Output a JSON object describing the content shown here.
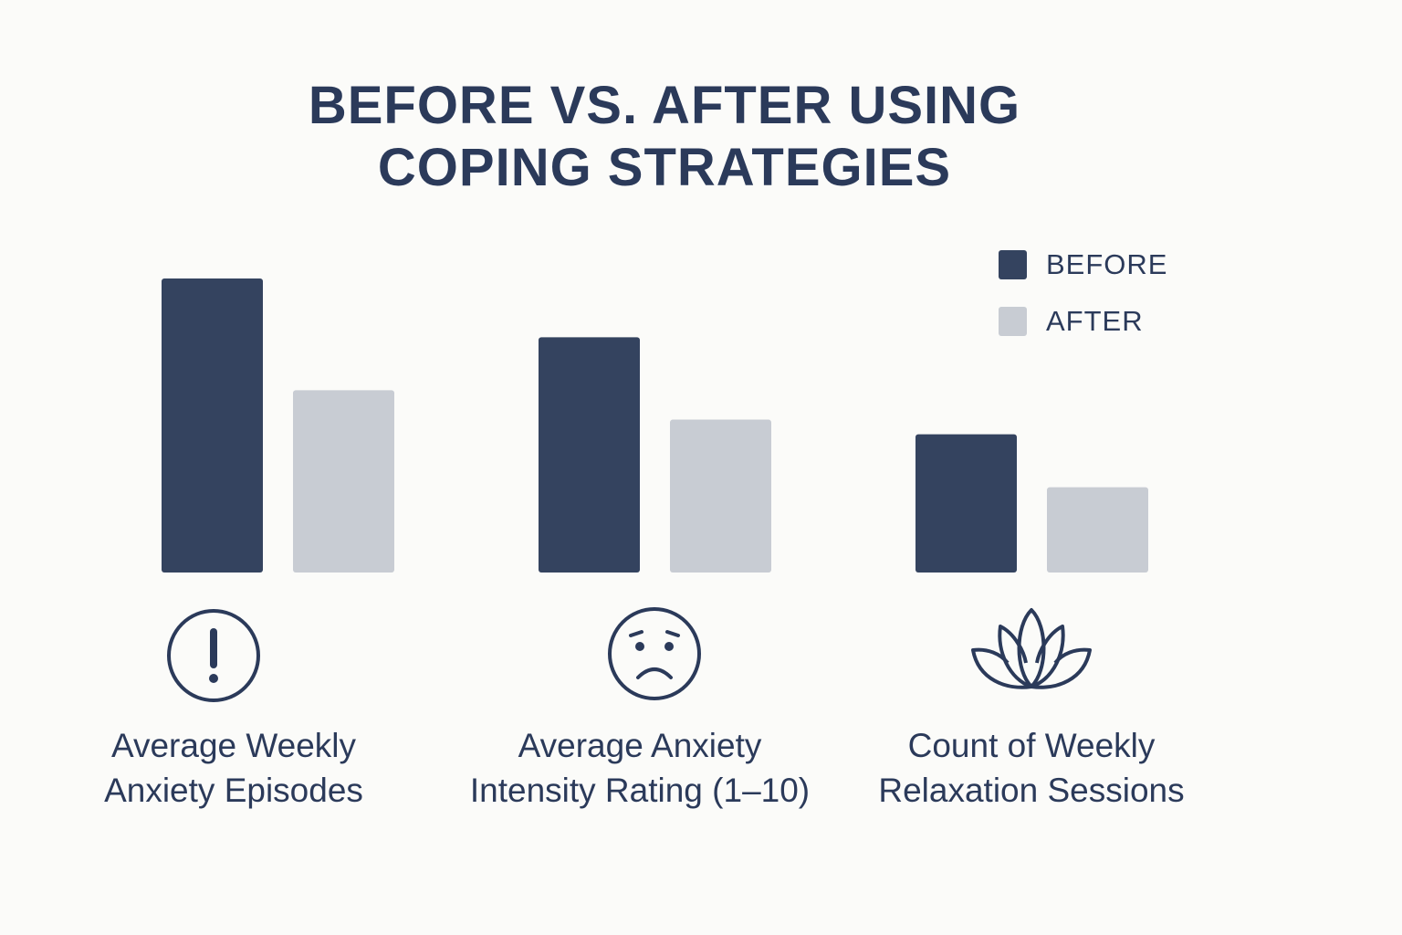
{
  "chart_data": {
    "type": "bar",
    "title": "BEFORE VS. AFTER USING COPING STRATEGIES",
    "title_lines": [
      "BEFORE VS. AFTER USING",
      "COPING STRATEGIES"
    ],
    "categories": [
      "Average Weekly Anxiety Episodes",
      "Average Anxiety Intensity Rating (1–10)",
      "Count of Weekly Relaxation Sessions"
    ],
    "category_lines": [
      [
        "Average Weekly",
        "Anxiety Episodes"
      ],
      [
        "Average Anxiety",
        "Intensity Rating (1–10)"
      ],
      [
        "Count of Weekly",
        "Relaxation Sessions"
      ]
    ],
    "category_icons": [
      "exclamation-circle-icon",
      "sad-face-icon",
      "lotus-icon"
    ],
    "series": [
      {
        "name": "BEFORE",
        "color": "#34435f",
        "values": [
          100,
          80,
          47
        ]
      },
      {
        "name": "AFTER",
        "color": "#c8ccd3",
        "values": [
          62,
          52,
          29
        ]
      }
    ],
    "value_note_scale": "relative",
    "ylim": [
      0,
      100
    ],
    "axes_shown": false,
    "grid": false,
    "legend_position": "top-right",
    "xlabel": "",
    "ylabel": ""
  }
}
